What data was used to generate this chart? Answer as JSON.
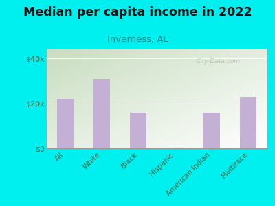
{
  "title": "Median per capita income in 2022",
  "subtitle": "Inverness, AL",
  "categories": [
    "All",
    "White",
    "Black",
    "Hispanic",
    "American Indian",
    "Multirace"
  ],
  "values": [
    22000,
    31000,
    16000,
    200,
    16000,
    23000
  ],
  "bar_color": "#c4b0d4",
  "background_color": "#00EFEF",
  "plot_bg_topleft": "#c8ddc0",
  "plot_bg_white": "#ffffff",
  "ylim": [
    0,
    44000
  ],
  "yticks": [
    0,
    20000,
    40000
  ],
  "ytick_labels": [
    "$0",
    "$20k",
    "$40k"
  ],
  "title_fontsize": 12.5,
  "subtitle_fontsize": 9.5,
  "subtitle_color": "#008888",
  "title_color": "#111111",
  "watermark": "City-Data.com",
  "watermark_color": "#aab8b0",
  "tick_color": "#446644",
  "ylabel_color": "#446644"
}
